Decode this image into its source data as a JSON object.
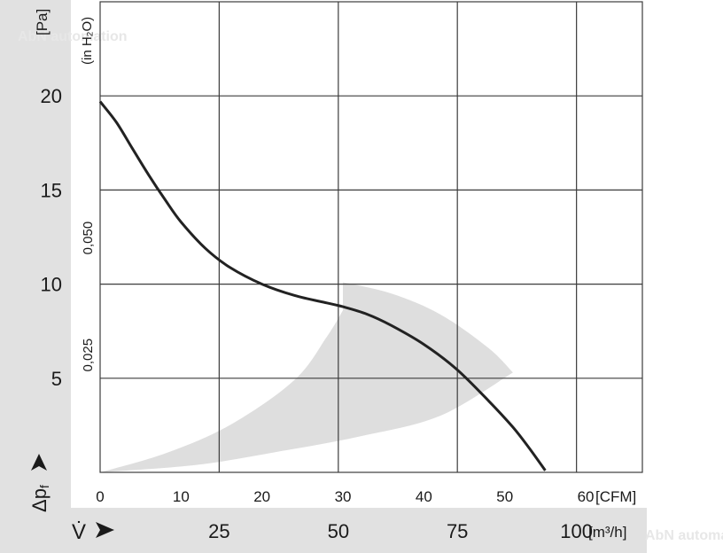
{
  "chart_data": {
    "type": "line",
    "series": [
      {
        "x": [
          0,
          2,
          4,
          6,
          8,
          10,
          13,
          16,
          20,
          24,
          28,
          30,
          33,
          36,
          40,
          44,
          48,
          51,
          53,
          55
        ],
        "y": [
          19.7,
          18.6,
          17.2,
          15.8,
          14.5,
          13.3,
          11.9,
          10.9,
          10.0,
          9.4,
          9.0,
          8.8,
          8.4,
          7.8,
          6.8,
          5.5,
          3.8,
          2.4,
          1.3,
          0.1
        ]
      }
    ],
    "operating_range": {
      "outer": {
        "x": [
          0,
          8,
          16,
          24,
          28,
          30
        ],
        "y": [
          0,
          1.0,
          2.5,
          4.9,
          7.2,
          8.6
        ]
      },
      "top": {
        "x": [
          30,
          36,
          42,
          48,
          51
        ],
        "y": [
          10.1,
          9.5,
          8.4,
          6.6,
          5.3
        ]
      },
      "inner": {
        "x": [
          51,
          42,
          32,
          22,
          12,
          0
        ],
        "y": [
          5.3,
          3.0,
          1.9,
          1.1,
          0.4,
          0
        ]
      }
    },
    "xlabel": "[CFM]",
    "x2label": "[m³/h]",
    "ylabel_symbol": "Δp",
    "ylabel_subscript": "f",
    "yunit": "[Pa]",
    "y2label": "(in H₂O)",
    "x2_symbol": "V̇",
    "xlim": [
      0,
      67
    ],
    "ylim": [
      0,
      25
    ],
    "yticks": [
      "5",
      "10",
      "15",
      "20"
    ],
    "yticks_values": [
      5,
      10,
      15,
      20
    ],
    "xticks": [
      "0",
      "10",
      "20",
      "30",
      "40",
      "50",
      "60"
    ],
    "xticks_values": [
      0,
      10,
      20,
      30,
      40,
      50,
      60
    ],
    "x2ticks": [
      "25",
      "50",
      "75",
      "100"
    ],
    "x2ticks_values": [
      14.71,
      29.43,
      44.14,
      58.86
    ],
    "y2ticks": [
      "0,025",
      "0,050"
    ],
    "y2ticks_values": [
      6.23,
      12.45
    ],
    "grid": true,
    "watermark": "AbN automation"
  },
  "colors": {
    "curve": "#222222",
    "band": "#dedede",
    "grid": "#3c3c3c",
    "sidebar": "#e1e1e1",
    "bottombar": "#e1e1e1"
  }
}
